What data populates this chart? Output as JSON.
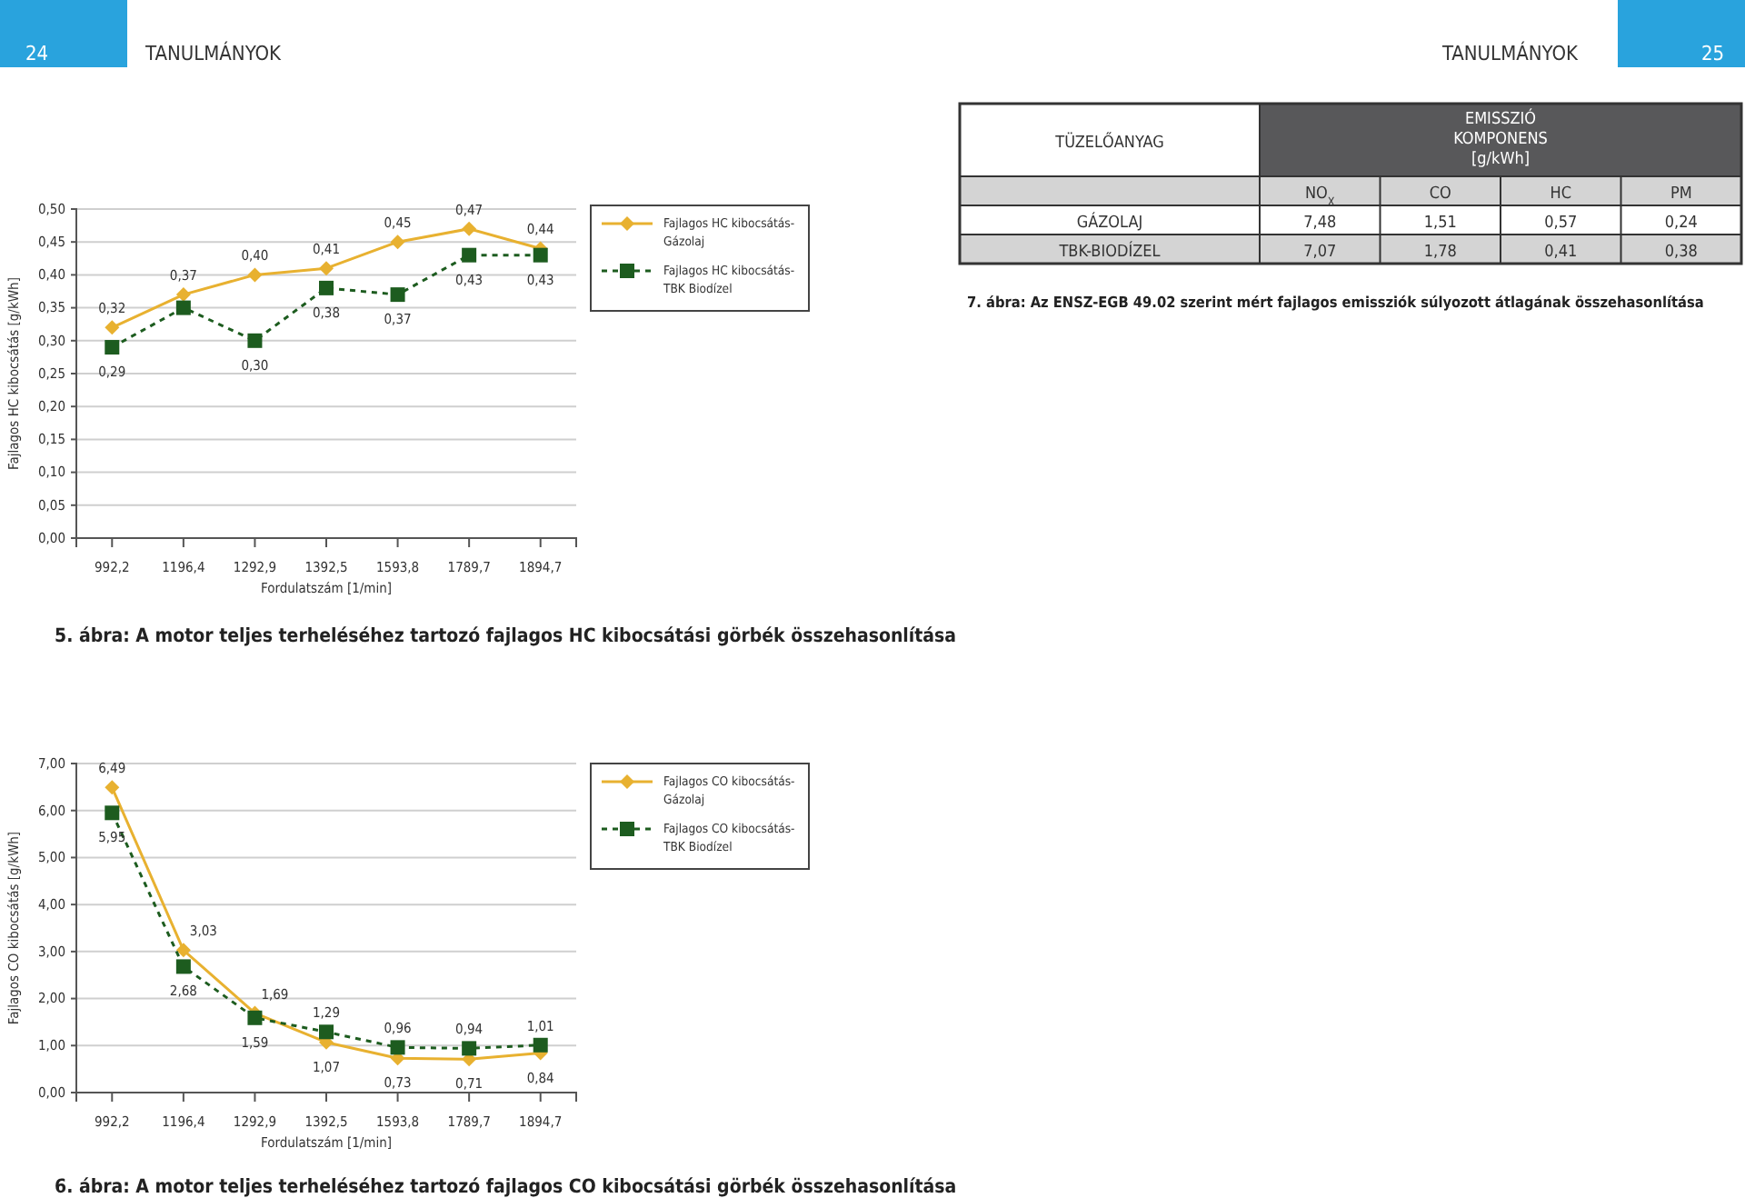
{
  "chart_data": [
    {
      "type": "line",
      "title": "5. ábra: A motor teljes terheléséhez tartozó fajlagos HC kibocsátási görbék összehasonlítása",
      "xlabel": "Fordulatszám [1/min]",
      "ylabel": "Fajlagos HC kibocsátás [g/kWh]",
      "annotations": [
        "24",
        "TANULMÁNYOK",
        "TANULMÁNYOK",
        "25"
      ],
      "categories": [
        "992,2",
        "1196,4",
        "1292,9",
        "1392,5",
        "1593,8",
        "1789,7",
        "1894,7"
      ],
      "ylim": [
        0,
        0.5
      ],
      "yticks": [
        {
          "value": 0,
          "label": "0,00"
        },
        {
          "value": 0.05,
          "label": "0,05"
        },
        {
          "value": 0.1,
          "label": "0,10"
        },
        {
          "value": 0.15,
          "label": "0,15"
        },
        {
          "value": 0.2,
          "label": "0,20"
        },
        {
          "value": 0.25,
          "label": "0,25"
        },
        {
          "value": 0.3,
          "label": "0,30"
        },
        {
          "value": 0.35,
          "label": "0,35"
        },
        {
          "value": 0.4,
          "label": "0,40"
        },
        {
          "value": 0.45,
          "label": "0,45"
        },
        {
          "value": 0.5,
          "label": "0,50"
        }
      ],
      "grid": "y",
      "legend": "right",
      "series": [
        {
          "name": "Fajlagos HC kibocsátás-Gázolaj",
          "color": "#e8b130",
          "marker": "diamond",
          "line_style": "solid",
          "values": [
            0.32,
            0.37,
            0.4,
            0.41,
            0.45,
            0.47,
            0.44
          ],
          "value_labels": [
            "0,32",
            "0,37",
            "0,40",
            "0,41",
            "0,45",
            "0,47",
            "0,44"
          ]
        },
        {
          "name": "Fajlagos HC kibocsátás-TBK Biodízel",
          "color": "#1d5c1f",
          "marker": "square",
          "line_style": "dashed",
          "values": [
            0.29,
            0.35,
            0.3,
            0.38,
            0.37,
            0.43,
            0.43
          ],
          "value_labels": [
            "0,29",
            null,
            "0,30",
            "0,38",
            "0,37",
            "0,43",
            "0,43"
          ]
        }
      ]
    },
    {
      "type": "line",
      "title": "6. ábra: A motor teljes terheléséhez tartozó fajlagos CO kibocsátási görbék összehasonlítása",
      "xlabel": "Fordulatszám [1/min]",
      "ylabel": "Fajlagos CO kibocsátás [g/kWh]",
      "categories": [
        "992,2",
        "1196,4",
        "1292,9",
        "1392,5",
        "1593,8",
        "1789,7",
        "1894,7"
      ],
      "ylim": [
        0,
        7
      ],
      "yticks": [
        {
          "value": 0,
          "label": "0,00"
        },
        {
          "value": 1,
          "label": "1,00"
        },
        {
          "value": 2,
          "label": "2,00"
        },
        {
          "value": 3,
          "label": "3,00"
        },
        {
          "value": 4,
          "label": "4,00"
        },
        {
          "value": 5,
          "label": "5,00"
        },
        {
          "value": 6,
          "label": "6,00"
        },
        {
          "value": 7,
          "label": "7,00"
        }
      ],
      "grid": "y",
      "legend": "right",
      "series": [
        {
          "name": "Fajlagos CO kibocsátás-Gázolaj",
          "color": "#e8b130",
          "marker": "diamond",
          "line_style": "solid",
          "values": [
            6.49,
            3.03,
            1.69,
            1.07,
            0.73,
            0.71,
            0.84
          ],
          "value_labels": [
            "6,49",
            "3,03",
            "1,69",
            "1,07",
            "0,73",
            "0,71",
            "0,84"
          ]
        },
        {
          "name": "Fajlagos CO kibocsátás-TBK Biodízel",
          "color": "#1d5c1f",
          "marker": "square",
          "line_style": "dashed",
          "values": [
            5.95,
            2.68,
            1.59,
            1.29,
            0.96,
            0.94,
            1.01
          ],
          "value_labels": [
            "5,95",
            "2,68",
            "1,59",
            "1,29",
            "0,96",
            "0,94",
            "1,01"
          ]
        }
      ]
    },
    {
      "type": "other",
      "title": "7. ábra: Az ENSZ-EGB 49.02 szerint mért fajlagos emissziók súlyozott átlagának összehasonlítása",
      "ylabel": "TÜZELŐANYAG",
      "xlabel": "EMISSZIÓ KOMPONENS [g/kWh]",
      "categories": [
        "NO$_{X}$",
        "CO",
        "HC",
        "PM"
      ],
      "y_categories": [
        "GÁZOLAJ",
        "TBK-BIODÍZEL"
      ],
      "cell_labels": [
        [
          "7,48",
          "1,51",
          "0,57",
          "0,24"
        ],
        [
          "7,07",
          "1,78",
          "0,41",
          "0,38"
        ]
      ]
    }
  ]
}
